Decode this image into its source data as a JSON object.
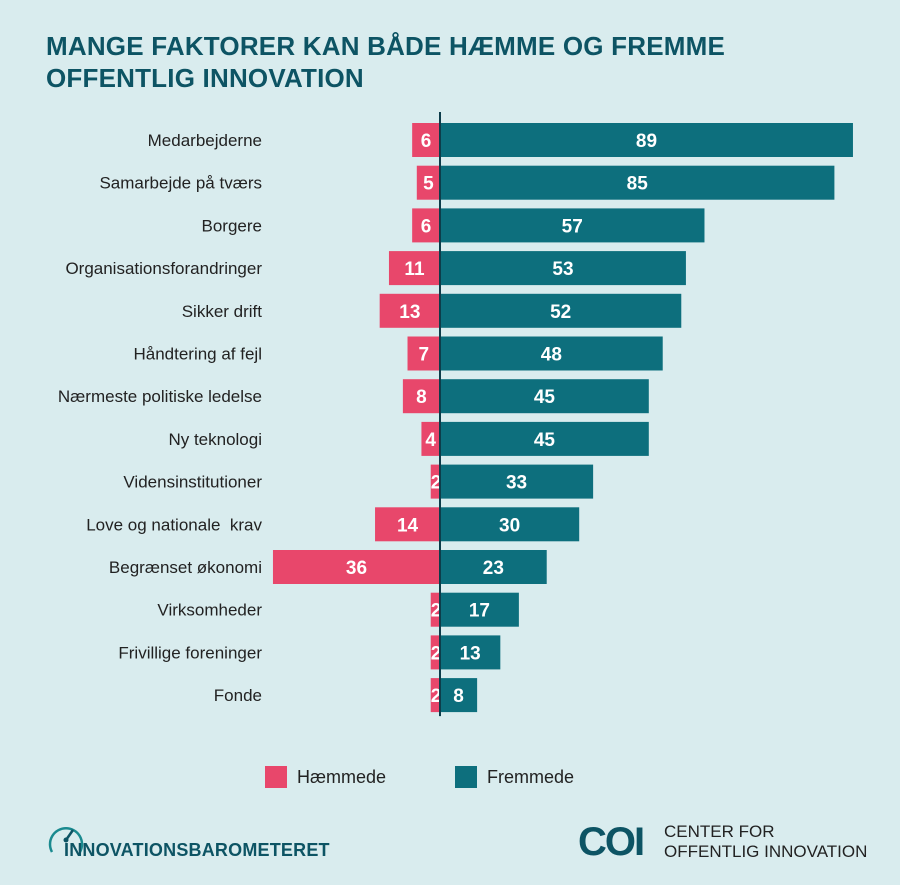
{
  "title_lines": [
    "MANGE FAKTORER KAN BÅDE HÆMME OG FREMME",
    "OFFENTLIG INNOVATION"
  ],
  "colors": {
    "haemmede": "#e8476b",
    "fremmede": "#0d6f7d",
    "background": "#d9ecee",
    "title": "#0d5464"
  },
  "chart_data": {
    "type": "bar",
    "orientation": "horizontal-diverging",
    "categories": [
      "Medarbejderne",
      "Samarbejde på tværs",
      "Borgere",
      "Organisationsforandringer",
      "Sikker drift",
      "Håndtering af fejl",
      "Nærmeste politiske ledelse",
      "Ny teknologi",
      "Vidensinstitutioner",
      "Love og nationale  krav",
      "Begrænset økonomi",
      "Virksomheder",
      "Frivillige foreninger",
      "Fonde"
    ],
    "series": [
      {
        "name": "Hæmmede",
        "values": [
          6,
          5,
          6,
          11,
          13,
          7,
          8,
          4,
          2,
          14,
          36,
          2,
          2,
          2
        ]
      },
      {
        "name": "Fremmede",
        "values": [
          89,
          85,
          57,
          53,
          52,
          48,
          45,
          45,
          33,
          30,
          23,
          17,
          13,
          8
        ]
      }
    ],
    "legend_position": "bottom"
  },
  "legend": {
    "haemmede_label": "Hæmmede",
    "fremmede_label": "Fremmede"
  },
  "footer": {
    "left_brand": "INNOVATIONSBAROMETERET",
    "right_logo": "COI",
    "right_line1": "CENTER FOR",
    "right_line2": "OFFENTLIG INNOVATION"
  }
}
